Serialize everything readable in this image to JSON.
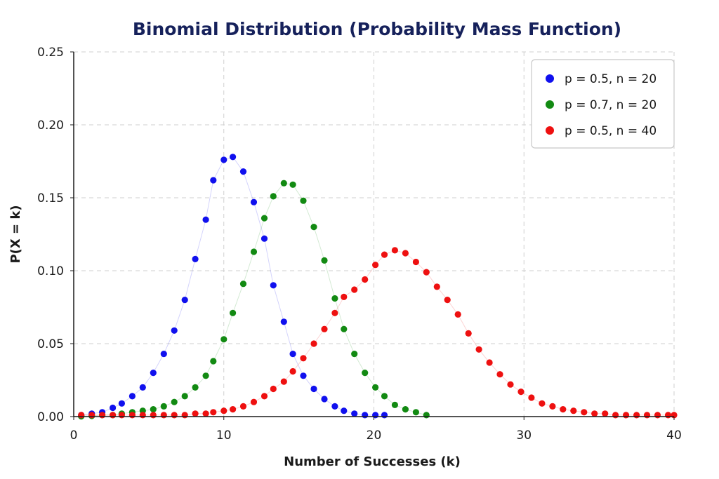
{
  "chart_data": {
    "type": "scatter",
    "title": "Binomial Distribution (Probability Mass Function)",
    "xlabel": "Number of Successes (k)",
    "ylabel": "P(X = k)",
    "xlim": [
      0,
      40
    ],
    "ylim": [
      0,
      0.25
    ],
    "xticks": [
      "0",
      "10",
      "20",
      "30",
      "40"
    ],
    "yticks": [
      "0.00",
      "0.05",
      "0.10",
      "0.15",
      "0.20",
      "0.25"
    ],
    "grid": true,
    "legend_position": "top-right",
    "series": [
      {
        "name": "p = 0.5, n = 20",
        "color": "#1010ee",
        "x": [
          0.5,
          1.2,
          1.9,
          2.6,
          3.2,
          3.9,
          4.6,
          5.3,
          6.0,
          6.7,
          7.4,
          8.1,
          8.8,
          9.3,
          10.0,
          10.6,
          11.3,
          12.0,
          12.7,
          13.3,
          14.0,
          14.6,
          15.3,
          16.0,
          16.7,
          17.4,
          18.0,
          18.7,
          19.4,
          20.1,
          20.7
        ],
        "values": [
          0.001,
          0.002,
          0.003,
          0.006,
          0.009,
          0.014,
          0.02,
          0.03,
          0.043,
          0.059,
          0.08,
          0.108,
          0.135,
          0.162,
          0.176,
          0.178,
          0.168,
          0.147,
          0.122,
          0.09,
          0.065,
          0.043,
          0.028,
          0.019,
          0.012,
          0.007,
          0.004,
          0.002,
          0.001,
          0.001,
          0.001
        ]
      },
      {
        "name": "p = 0.7, n = 20",
        "color": "#128a12",
        "x": [
          0.5,
          1.2,
          1.9,
          2.6,
          3.2,
          3.9,
          4.6,
          5.3,
          6.0,
          6.7,
          7.4,
          8.1,
          8.8,
          9.3,
          10.0,
          10.6,
          11.3,
          12.0,
          12.7,
          13.3,
          14.0,
          14.6,
          15.3,
          16.0,
          16.7,
          17.4,
          18.0,
          18.7,
          19.4,
          20.1,
          20.7,
          21.4,
          22.1,
          22.8,
          23.5
        ],
        "values": [
          0.0002,
          0.0005,
          0.001,
          0.001,
          0.002,
          0.003,
          0.004,
          0.005,
          0.007,
          0.01,
          0.014,
          0.02,
          0.028,
          0.038,
          0.053,
          0.071,
          0.091,
          0.113,
          0.136,
          0.151,
          0.16,
          0.159,
          0.148,
          0.13,
          0.107,
          0.081,
          0.06,
          0.043,
          0.03,
          0.02,
          0.014,
          0.008,
          0.005,
          0.003,
          0.001
        ]
      },
      {
        "name": "p = 0.5, n = 40",
        "color": "#ee1010",
        "x": [
          0.5,
          1.2,
          1.9,
          2.6,
          3.2,
          3.9,
          4.6,
          5.3,
          6.0,
          6.7,
          7.4,
          8.1,
          8.8,
          9.3,
          10.0,
          10.6,
          11.3,
          12.0,
          12.7,
          13.3,
          14.0,
          14.6,
          15.3,
          16.0,
          16.7,
          17.4,
          18.0,
          18.7,
          19.4,
          20.1,
          20.7,
          21.4,
          22.1,
          22.8,
          23.5,
          24.2,
          24.9,
          25.6,
          26.3,
          27.0,
          27.7,
          28.4,
          29.1,
          29.8,
          30.5,
          31.2,
          31.9,
          32.6,
          33.3,
          34.0,
          34.7,
          35.4,
          36.1,
          36.8,
          37.5,
          38.2,
          38.9,
          39.6,
          40.0
        ],
        "values": [
          0.001,
          0.001,
          0.001,
          0.001,
          0.001,
          0.001,
          0.001,
          0.001,
          0.001,
          0.001,
          0.001,
          0.002,
          0.002,
          0.003,
          0.004,
          0.005,
          0.007,
          0.01,
          0.014,
          0.019,
          0.024,
          0.031,
          0.04,
          0.05,
          0.06,
          0.071,
          0.082,
          0.087,
          0.094,
          0.104,
          0.111,
          0.114,
          0.112,
          0.106,
          0.099,
          0.089,
          0.08,
          0.07,
          0.057,
          0.046,
          0.037,
          0.029,
          0.022,
          0.017,
          0.013,
          0.009,
          0.007,
          0.005,
          0.004,
          0.003,
          0.002,
          0.002,
          0.001,
          0.001,
          0.001,
          0.001,
          0.001,
          0.001,
          0.001
        ]
      }
    ]
  }
}
